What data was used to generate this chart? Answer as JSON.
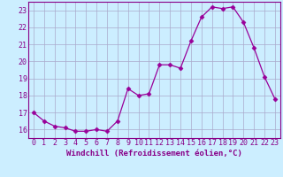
{
  "x": [
    0,
    1,
    2,
    3,
    4,
    5,
    6,
    7,
    8,
    9,
    10,
    11,
    12,
    13,
    14,
    15,
    16,
    17,
    18,
    19,
    20,
    21,
    22,
    23
  ],
  "y": [
    17.0,
    16.5,
    16.2,
    16.1,
    15.9,
    15.9,
    16.0,
    15.9,
    16.5,
    18.4,
    18.0,
    18.1,
    19.8,
    19.8,
    19.6,
    21.2,
    22.6,
    23.2,
    23.1,
    23.2,
    22.3,
    20.8,
    19.1,
    17.8
  ],
  "line_color": "#990099",
  "marker": "D",
  "marker_size": 2.5,
  "bg_color": "#cceeff",
  "grid_color": "#aaaacc",
  "xlabel": "Windchill (Refroidissement éolien,°C)",
  "xlim": [
    -0.5,
    23.5
  ],
  "ylim": [
    15.5,
    23.5
  ],
  "yticks": [
    16,
    17,
    18,
    19,
    20,
    21,
    22,
    23
  ],
  "xticks": [
    0,
    1,
    2,
    3,
    4,
    5,
    6,
    7,
    8,
    9,
    10,
    11,
    12,
    13,
    14,
    15,
    16,
    17,
    18,
    19,
    20,
    21,
    22,
    23
  ],
  "xlabel_fontsize": 6.5,
  "tick_fontsize": 6.0,
  "label_color": "#880088"
}
